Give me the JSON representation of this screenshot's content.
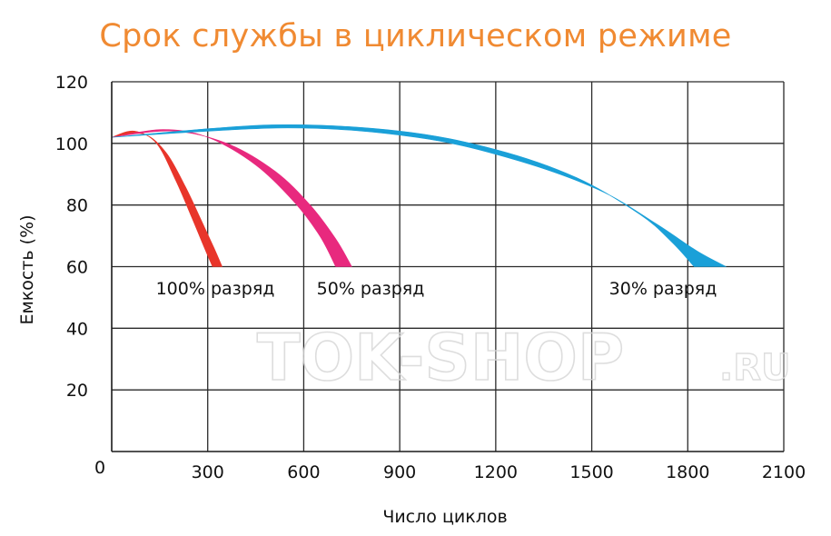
{
  "title": "Срок службы в циклическом режиме",
  "watermark": "TOK-SHOP",
  "watermark_suffix": ".RU",
  "chart_data": {
    "type": "area",
    "title": "Срок службы в циклическом режиме",
    "xlabel": "Число циклов",
    "ylabel": "Емкость (%)",
    "xlim": [
      0,
      2100
    ],
    "ylim": [
      0,
      120
    ],
    "x_ticks": [
      0,
      300,
      600,
      900,
      1200,
      1500,
      1800,
      2100
    ],
    "y_ticks": [
      20,
      40,
      60,
      80,
      100,
      120
    ],
    "grid": true,
    "series": [
      {
        "name": "100% разряд",
        "color": "#e8352a",
        "upper": [
          [
            0,
            102
          ],
          [
            70,
            104
          ],
          [
            140,
            100
          ],
          [
            200,
            88
          ],
          [
            250,
            76
          ],
          [
            290,
            66
          ],
          [
            315,
            60
          ]
        ],
        "lower": [
          [
            0,
            102
          ],
          [
            100,
            103
          ],
          [
            170,
            97
          ],
          [
            230,
            86
          ],
          [
            280,
            75
          ],
          [
            320,
            66
          ],
          [
            345,
            60
          ]
        ]
      },
      {
        "name": "50% разряд",
        "color": "#e8297e",
        "upper": [
          [
            0,
            102
          ],
          [
            160,
            104.5
          ],
          [
            300,
            102
          ],
          [
            450,
            93
          ],
          [
            570,
            81
          ],
          [
            650,
            70
          ],
          [
            700,
            60
          ]
        ],
        "lower": [
          [
            0,
            102
          ],
          [
            190,
            104
          ],
          [
            360,
            100
          ],
          [
            510,
            91
          ],
          [
            620,
            80
          ],
          [
            700,
            69
          ],
          [
            750,
            60
          ]
        ]
      },
      {
        "name": "30% разряд",
        "color": "#1aa0d8",
        "upper": [
          [
            0,
            102
          ],
          [
            500,
            106
          ],
          [
            900,
            104
          ],
          [
            1200,
            98
          ],
          [
            1450,
            89
          ],
          [
            1650,
            77
          ],
          [
            1750,
            68
          ],
          [
            1820,
            60
          ]
        ],
        "lower": [
          [
            0,
            102
          ],
          [
            550,
            105
          ],
          [
            950,
            102
          ],
          [
            1250,
            95
          ],
          [
            1520,
            85
          ],
          [
            1700,
            74
          ],
          [
            1830,
            65
          ],
          [
            1920,
            60
          ]
        ]
      }
    ]
  }
}
